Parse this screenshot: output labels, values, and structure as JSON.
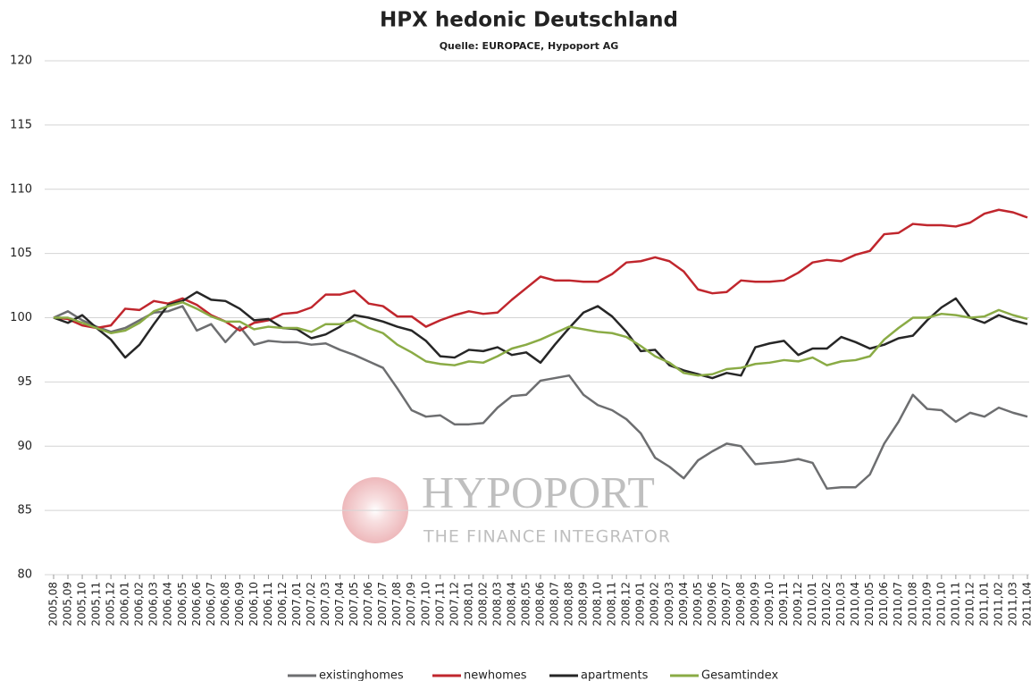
{
  "chart_data": {
    "type": "line",
    "title": "HPX hedonic Deutschland",
    "subtitle": "Quelle: EUROPACE,  Hypoport AG",
    "annotations": [
      "HYPOPORT",
      "THE FINANCE INTEGRATOR"
    ],
    "categories": [
      "2005,08",
      "2005,09",
      "2005,10",
      "2005,11",
      "2005,12",
      "2006,01",
      "2006,02",
      "2006,03",
      "2006,04",
      "2006,05",
      "2006,06",
      "2006,07",
      "2006,08",
      "2006,09",
      "2006,10",
      "2006,11",
      "2006,12",
      "2007,01",
      "2007,02",
      "2007,03",
      "2007,04",
      "2007,05",
      "2007,06",
      "2007,07",
      "2007,08",
      "2007,09",
      "2007,10",
      "2007,11",
      "2007,12",
      "2008,01",
      "2008,02",
      "2008,03",
      "2008,04",
      "2008,05",
      "2008,06",
      "2008,07",
      "2008,08",
      "2008,09",
      "2008,10",
      "2008,11",
      "2008,12",
      "2009,01",
      "2009,02",
      "2009,03",
      "2009,04",
      "2009,05",
      "2009,06",
      "2009,07",
      "2009,08",
      "2009,09",
      "2009,10",
      "2009,11",
      "2009,12",
      "2010,01",
      "2010,02",
      "2010,03",
      "2010,04",
      "2010,05",
      "2010,06",
      "2010,07",
      "2010,08",
      "2010,09",
      "2010,10",
      "2010,11",
      "2010,12",
      "2011,01",
      "2011,02",
      "2011,03",
      "2011,04"
    ],
    "series": [
      {
        "name": "existinghomes",
        "color": "#6d6e70",
        "values": [
          100,
          100.5,
          99.8,
          99.3,
          98.9,
          99.2,
          99.8,
          100.4,
          100.5,
          100.9,
          99.0,
          99.5,
          98.1,
          99.3,
          97.9,
          98.2,
          98.1,
          98.1,
          97.9,
          98.0,
          97.5,
          97.1,
          96.6,
          96.1,
          94.5,
          92.8,
          92.3,
          92.4,
          91.7,
          91.7,
          91.8,
          93.0,
          93.9,
          94.0,
          95.1,
          95.3,
          95.5,
          94.0,
          93.2,
          92.8,
          92.1,
          91.0,
          89.1,
          88.4,
          87.5,
          88.9,
          89.6,
          90.2,
          90.0,
          88.6,
          88.7,
          88.8,
          89.0,
          88.7,
          86.7,
          86.8,
          86.8,
          87.8,
          90.2,
          91.9,
          94.0,
          92.9,
          92.8,
          91.9,
          92.6,
          92.3,
          93.0,
          92.6,
          92.3
        ]
      },
      {
        "name": "newhomes",
        "color": "#c0262d",
        "values": [
          100,
          99.9,
          99.4,
          99.2,
          99.4,
          100.7,
          100.6,
          101.3,
          101.1,
          101.5,
          101.0,
          100.2,
          99.7,
          99.0,
          99.6,
          99.8,
          100.3,
          100.4,
          100.8,
          101.8,
          101.8,
          102.1,
          101.1,
          100.9,
          100.1,
          100.1,
          99.3,
          99.8,
          100.2,
          100.5,
          100.3,
          100.4,
          101.4,
          102.3,
          103.2,
          102.9,
          102.9,
          102.8,
          102.8,
          103.4,
          104.3,
          104.4,
          104.7,
          104.4,
          103.6,
          102.2,
          101.9,
          102.0,
          102.9,
          102.8,
          102.8,
          102.9,
          103.5,
          104.3,
          104.5,
          104.4,
          104.9,
          105.2,
          106.5,
          106.6,
          107.3,
          107.2,
          107.2,
          107.1,
          107.4,
          108.1,
          108.4,
          108.2,
          107.8
        ]
      },
      {
        "name": "apartments",
        "color": "#262626",
        "values": [
          100,
          99.6,
          100.2,
          99.2,
          98.3,
          96.9,
          97.9,
          99.5,
          101.0,
          101.3,
          102.0,
          101.4,
          101.3,
          100.7,
          99.8,
          99.9,
          99.2,
          99.1,
          98.4,
          98.7,
          99.3,
          100.2,
          100.0,
          99.7,
          99.3,
          99.0,
          98.2,
          97.0,
          96.9,
          97.5,
          97.4,
          97.7,
          97.1,
          97.3,
          96.5,
          97.9,
          99.2,
          100.4,
          100.9,
          100.1,
          98.9,
          97.4,
          97.5,
          96.3,
          95.9,
          95.6,
          95.3,
          95.7,
          95.5,
          97.7,
          98.0,
          98.2,
          97.1,
          97.6,
          97.6,
          98.5,
          98.1,
          97.6,
          97.9,
          98.4,
          98.6,
          99.8,
          100.8,
          101.5,
          100.0,
          99.6,
          100.2,
          99.8,
          99.5
        ]
      },
      {
        "name": "Gesamtindex",
        "color": "#8aab45",
        "values": [
          100,
          100,
          99.6,
          99.2,
          98.8,
          99.0,
          99.6,
          100.5,
          100.9,
          101.2,
          100.7,
          100.1,
          99.7,
          99.7,
          99.1,
          99.3,
          99.2,
          99.2,
          98.9,
          99.5,
          99.5,
          99.8,
          99.2,
          98.8,
          97.9,
          97.3,
          96.6,
          96.4,
          96.3,
          96.6,
          96.5,
          97.0,
          97.6,
          97.9,
          98.3,
          98.8,
          99.3,
          99.1,
          98.9,
          98.8,
          98.5,
          97.8,
          97.0,
          96.5,
          95.7,
          95.5,
          95.6,
          96.0,
          96.1,
          96.4,
          96.5,
          96.7,
          96.6,
          96.9,
          96.3,
          96.6,
          96.7,
          97.0,
          98.3,
          99.2,
          100.0,
          100.0,
          100.3,
          100.2,
          100.0,
          100.1,
          100.6,
          100.2,
          99.9
        ]
      }
    ],
    "ylim": [
      80,
      120
    ],
    "yticks": [
      80,
      85,
      90,
      95,
      100,
      105,
      110,
      115,
      120
    ],
    "grid": true
  }
}
